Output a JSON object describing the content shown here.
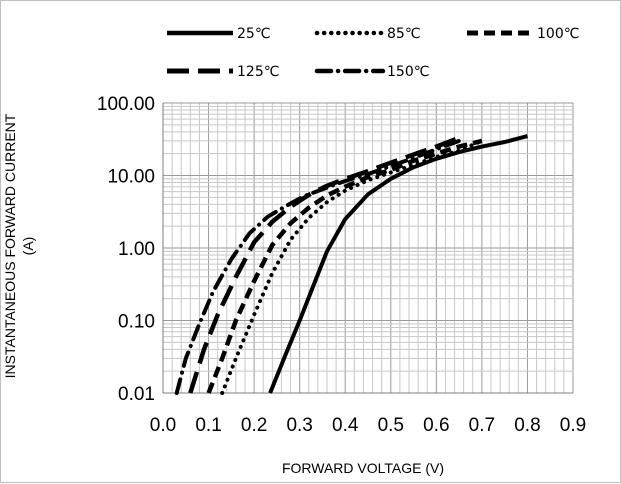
{
  "chart_data": {
    "type": "line",
    "title": "",
    "xlabel": "FORWARD VOLTAGE (V)",
    "ylabel_lines": [
      "INSTANTANEOUS FORWARD CURRENT",
      "(A)"
    ],
    "x_ticks": [
      "0.0",
      "0.1",
      "0.2",
      "0.3",
      "0.4",
      "0.5",
      "0.6",
      "0.7",
      "0.8",
      "0.9"
    ],
    "y_ticks": [
      "0.01",
      "0.10",
      "1.00",
      "10.00",
      "100.00"
    ],
    "xlim": [
      0.0,
      0.9
    ],
    "ylim": [
      0.01,
      100
    ],
    "y_scale": "log",
    "grid": true,
    "legend_position": "top",
    "series": [
      {
        "name": "25℃",
        "style": "solid",
        "color": "#000000",
        "x": [
          0.235,
          0.27,
          0.3,
          0.33,
          0.36,
          0.4,
          0.45,
          0.5,
          0.55,
          0.6,
          0.65,
          0.7,
          0.75,
          0.8
        ],
        "y": [
          0.01,
          0.035,
          0.1,
          0.3,
          0.9,
          2.5,
          5.5,
          9.0,
          13.0,
          17.0,
          21.0,
          25.0,
          29.0,
          35.0
        ]
      },
      {
        "name": "85℃",
        "style": "dotted",
        "color": "#000000",
        "x": [
          0.13,
          0.16,
          0.2,
          0.24,
          0.28,
          0.32,
          0.36,
          0.4,
          0.45,
          0.5,
          0.55,
          0.6,
          0.65,
          0.7
        ],
        "y": [
          0.01,
          0.03,
          0.12,
          0.45,
          1.3,
          2.6,
          4.3,
          6.2,
          8.6,
          11.0,
          14.0,
          18.0,
          22.0,
          30.0
        ]
      },
      {
        "name": "100℃",
        "style": "dashed",
        "color": "#000000",
        "x": [
          0.1,
          0.13,
          0.16,
          0.2,
          0.24,
          0.28,
          0.32,
          0.36,
          0.4,
          0.45,
          0.5,
          0.55,
          0.6,
          0.65,
          0.7
        ],
        "y": [
          0.01,
          0.03,
          0.1,
          0.35,
          1.1,
          2.2,
          3.6,
          5.3,
          7.0,
          9.5,
          12.0,
          16.0,
          20.0,
          25.0,
          30.0
        ]
      },
      {
        "name": "125℃",
        "style": "long-dash",
        "color": "#000000",
        "x": [
          0.06,
          0.09,
          0.12,
          0.16,
          0.2,
          0.24,
          0.28,
          0.32,
          0.36,
          0.4,
          0.45,
          0.5,
          0.55,
          0.6,
          0.65
        ],
        "y": [
          0.01,
          0.04,
          0.12,
          0.4,
          1.2,
          2.3,
          3.7,
          5.4,
          7.2,
          9.0,
          11.5,
          15.0,
          19.5,
          25.0,
          33.0
        ]
      },
      {
        "name": "150℃",
        "style": "dash-dot",
        "color": "#000000",
        "x": [
          0.03,
          0.05,
          0.08,
          0.11,
          0.15,
          0.19,
          0.23,
          0.27,
          0.31,
          0.36,
          0.4,
          0.45,
          0.5,
          0.55,
          0.6,
          0.65
        ],
        "y": [
          0.01,
          0.03,
          0.09,
          0.25,
          0.7,
          1.6,
          2.7,
          3.8,
          5.2,
          6.8,
          8.4,
          10.5,
          13.5,
          17.5,
          23.0,
          30.0
        ]
      }
    ]
  }
}
